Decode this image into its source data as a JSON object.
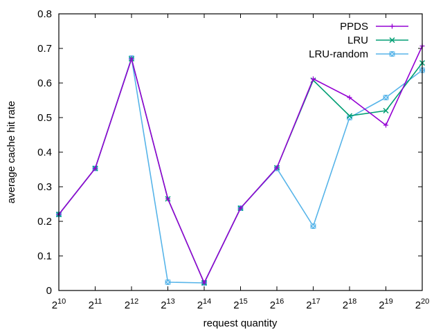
{
  "chart_data": {
    "type": "line",
    "title": "",
    "xlabel": "request quantity",
    "ylabel": "average cache hit rate",
    "x_scale": "log2",
    "x_tick_base": "2",
    "x_tick_exponents": [
      "10",
      "11",
      "12",
      "13",
      "14",
      "15",
      "16",
      "17",
      "18",
      "19",
      "20"
    ],
    "x": [
      1024,
      2048,
      4096,
      8192,
      16384,
      32768,
      65536,
      131072,
      262144,
      524288,
      1048576
    ],
    "xlim": [
      1024,
      1048576
    ],
    "ylim": [
      0,
      0.8
    ],
    "y_ticks": [
      "0",
      "0.1",
      "0.2",
      "0.3",
      "0.4",
      "0.5",
      "0.6",
      "0.7",
      "0.8"
    ],
    "grid": false,
    "legend_position": "top-right",
    "series": [
      {
        "name": "PPDS",
        "color": "#9400d3",
        "marker": "plus",
        "values": [
          0.22,
          0.353,
          0.67,
          0.265,
          0.022,
          0.238,
          0.355,
          0.612,
          0.558,
          0.478,
          0.707
        ]
      },
      {
        "name": "LRU",
        "color": "#009e73",
        "marker": "cross",
        "values": [
          0.22,
          0.353,
          0.67,
          0.265,
          0.022,
          0.238,
          0.355,
          0.608,
          0.505,
          0.52,
          0.658
        ]
      },
      {
        "name": "LRU-random",
        "color": "#56b4e9",
        "marker": "square-cross",
        "values": [
          0.22,
          0.353,
          0.672,
          0.024,
          0.022,
          0.238,
          0.353,
          0.186,
          0.5,
          0.558,
          0.637
        ]
      }
    ]
  }
}
